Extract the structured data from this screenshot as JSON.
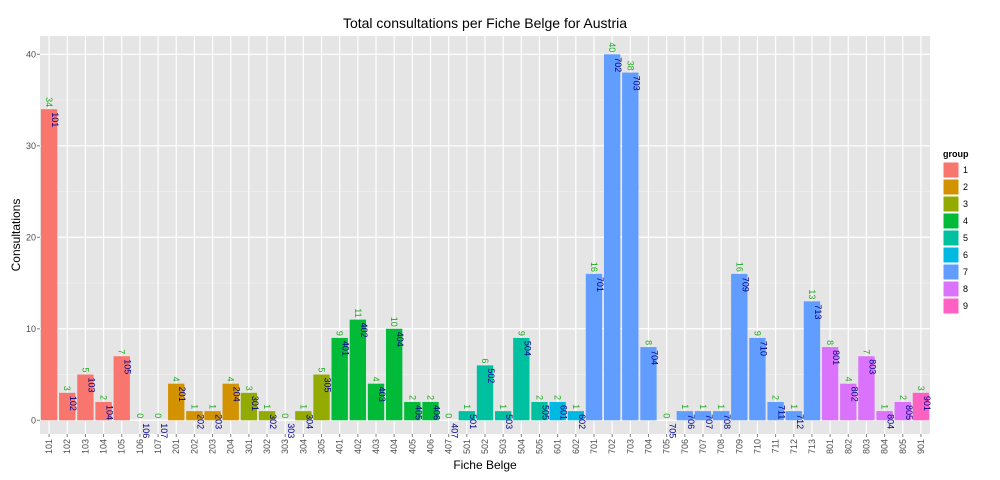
{
  "chart_data": {
    "type": "bar",
    "title": "Total consultations per Fiche Belge for Austria",
    "xlabel": "Fiche Belge",
    "ylabel": "Consultations",
    "ylim": [
      -1.5,
      42
    ],
    "yticks": [
      0,
      10,
      20,
      30,
      40
    ],
    "grid": true,
    "legend_position": "right",
    "legend_title": "group",
    "groups": [
      {
        "name": "1",
        "color": "#F8766D"
      },
      {
        "name": "2",
        "color": "#D39200"
      },
      {
        "name": "3",
        "color": "#93AA00"
      },
      {
        "name": "4",
        "color": "#00BA38"
      },
      {
        "name": "5",
        "color": "#00C19F"
      },
      {
        "name": "6",
        "color": "#00B9E3"
      },
      {
        "name": "7",
        "color": "#619CFF"
      },
      {
        "name": "8",
        "color": "#DB72FB"
      },
      {
        "name": "9",
        "color": "#FF61C3"
      }
    ],
    "categories": [
      "101",
      "102",
      "103",
      "104",
      "105",
      "106",
      "107",
      "201",
      "202",
      "203",
      "204",
      "301",
      "302",
      "303",
      "304",
      "305",
      "401",
      "402",
      "403",
      "404",
      "405",
      "406",
      "407",
      "501",
      "502",
      "503",
      "504",
      "505",
      "601",
      "602",
      "701",
      "702",
      "703",
      "704",
      "705",
      "706",
      "707",
      "708",
      "709",
      "710",
      "711",
      "712",
      "713",
      "801",
      "802",
      "803",
      "804",
      "805",
      "901"
    ],
    "values": [
      34,
      3,
      5,
      2,
      7,
      0,
      0,
      4,
      1,
      1,
      4,
      3,
      1,
      0,
      1,
      5,
      9,
      11,
      4,
      10,
      2,
      2,
      0,
      1,
      6,
      1,
      9,
      2,
      2,
      1,
      16,
      40,
      38,
      8,
      0,
      1,
      1,
      1,
      16,
      9,
      2,
      1,
      13,
      8,
      4,
      7,
      1,
      2,
      3
    ],
    "value_label_color": "#22AA22",
    "category_label_color": "#00008B"
  }
}
